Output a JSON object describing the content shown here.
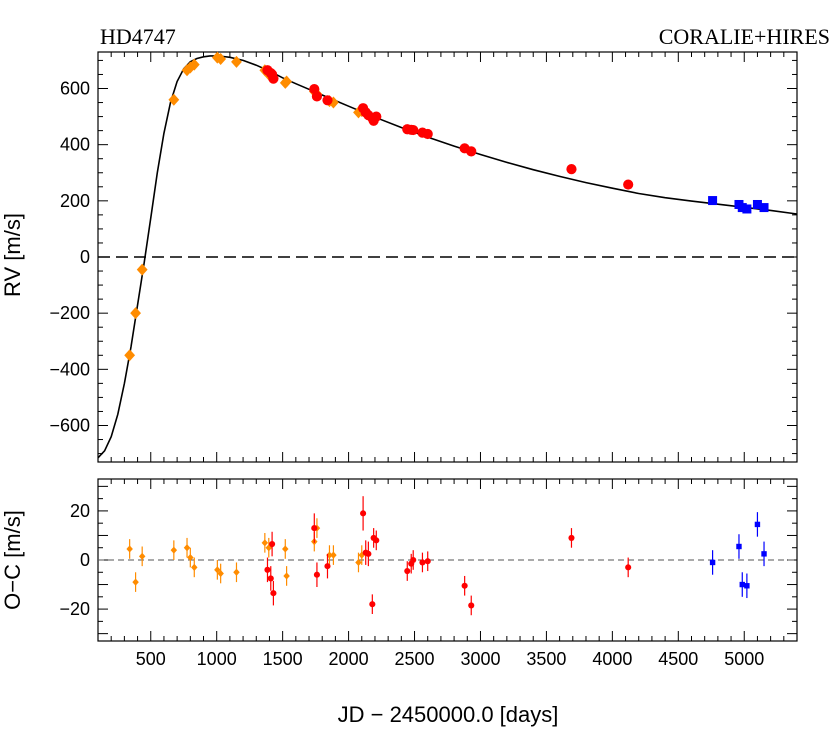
{
  "chart_data": [
    {
      "type": "scatter",
      "panel": "rv",
      "title_left": "HD4747",
      "title_right": "CORALIE+HIRES",
      "ylabel": "RV [m/s]",
      "xlim": [
        100,
        5400
      ],
      "ylim": [
        -730,
        730
      ],
      "x_ticks": [
        500,
        1000,
        1500,
        2000,
        2500,
        3000,
        3500,
        4000,
        4500,
        5000
      ],
      "y_ticks": [
        -600,
        -400,
        -200,
        0,
        200,
        400,
        600
      ],
      "zero_line": true,
      "model_curve": {
        "x": [
          100,
          150,
          200,
          250,
          300,
          350,
          400,
          450,
          500,
          550,
          600,
          650,
          700,
          750,
          800,
          850,
          900,
          950,
          1000,
          1050,
          1100,
          1200,
          1300,
          1400,
          1500,
          1600,
          1700,
          1800,
          1900,
          2000,
          2200,
          2400,
          2600,
          2800,
          3000,
          3200,
          3400,
          3600,
          3800,
          4000,
          4200,
          4400,
          4600,
          4800,
          5000,
          5200,
          5400
        ],
        "y": [
          -715,
          -690,
          -640,
          -560,
          -450,
          -320,
          -170,
          -20,
          140,
          300,
          440,
          550,
          625,
          670,
          695,
          707,
          713,
          716,
          716,
          714,
          711,
          700,
          683,
          662,
          638,
          617,
          597,
          577,
          557,
          537,
          498,
          461,
          427,
          395,
          365,
          337,
          311,
          287,
          265,
          245,
          226,
          211,
          199,
          188,
          177,
          166,
          153
        ]
      },
      "series": [
        {
          "color": "#FF8C00",
          "marker": "diamond",
          "x": [
            340,
            385,
            435,
            675,
            775,
            800,
            830,
            1005,
            1030,
            1150,
            1365,
            1395,
            1520,
            1530,
            1740,
            1760,
            1855,
            1885,
            2075,
            2100
          ],
          "y": [
            -350,
            -200,
            -45,
            560,
            665,
            675,
            685,
            710,
            705,
            695,
            665,
            650,
            620,
            625,
            590,
            580,
            555,
            550,
            515,
            520
          ]
        },
        {
          "color": "#FF0000",
          "marker": "circle",
          "x": [
            1385,
            1410,
            1420,
            1430,
            1740,
            1760,
            1840,
            2110,
            2130,
            2150,
            2180,
            2190,
            2210,
            2445,
            2475,
            2490,
            2560,
            2600,
            2880,
            2930,
            3690,
            4120
          ],
          "y": [
            665,
            655,
            650,
            635,
            598,
            572,
            558,
            530,
            515,
            505,
            495,
            485,
            500,
            455,
            453,
            452,
            443,
            438,
            387,
            376,
            313,
            258
          ]
        },
        {
          "color": "#0000FF",
          "marker": "square",
          "x": [
            4760,
            4960,
            4985,
            5020,
            5100,
            5150
          ],
          "y": [
            201,
            187,
            176,
            171,
            187,
            176
          ]
        }
      ]
    },
    {
      "type": "scatter",
      "panel": "residuals",
      "xlabel": "JD − 2450000.0 [days]",
      "ylabel": "O−C [m/s]",
      "xlim": [
        100,
        5400
      ],
      "ylim": [
        -33,
        33
      ],
      "x_ticks": [
        500,
        1000,
        1500,
        2000,
        2500,
        3000,
        3500,
        4000,
        4500,
        5000
      ],
      "y_ticks": [
        -20,
        0,
        20
      ],
      "zero_line": true,
      "series": [
        {
          "color": "#FF8C00",
          "marker": "diamond",
          "x": [
            340,
            385,
            435,
            675,
            775,
            800,
            830,
            1005,
            1030,
            1150,
            1365,
            1395,
            1520,
            1530,
            1740,
            1760,
            1855,
            1885,
            2075,
            2100
          ],
          "y": [
            4.5,
            -9,
            1.5,
            4,
            5,
            1,
            -3,
            -4,
            -5.5,
            -5,
            7,
            5,
            4.5,
            -6.5,
            7.5,
            13,
            2,
            2,
            -1,
            2
          ],
          "err": [
            4,
            4,
            4,
            4,
            4,
            4,
            4,
            4,
            4,
            4,
            4,
            4,
            4,
            4,
            4,
            4,
            4,
            4,
            4,
            4
          ]
        },
        {
          "color": "#FF0000",
          "marker": "circle",
          "x": [
            1385,
            1410,
            1420,
            1430,
            1740,
            1760,
            1840,
            2110,
            2130,
            2150,
            2180,
            2190,
            2210,
            2445,
            2475,
            2490,
            2560,
            2600,
            2880,
            2930,
            3690,
            4120
          ],
          "y": [
            -4,
            -7.5,
            6.5,
            -13.5,
            13,
            -6,
            -2.5,
            19,
            3,
            2.5,
            -18,
            9,
            8,
            -4.5,
            -1.5,
            0,
            -1,
            -0.5,
            -10.5,
            -18.5,
            9,
            -3
          ],
          "err": [
            5,
            5,
            5,
            5,
            6,
            5,
            5,
            7,
            5,
            5,
            4,
            4,
            4,
            4,
            4,
            4,
            4,
            4,
            4,
            4,
            4,
            4
          ]
        },
        {
          "color": "#0000FF",
          "marker": "square",
          "x": [
            4760,
            4960,
            4985,
            5020,
            5100,
            5150
          ],
          "y": [
            -1,
            5.5,
            -10,
            -10.5,
            14.5,
            2.5
          ],
          "err": [
            5,
            5,
            5,
            5,
            5,
            5
          ]
        }
      ]
    }
  ]
}
